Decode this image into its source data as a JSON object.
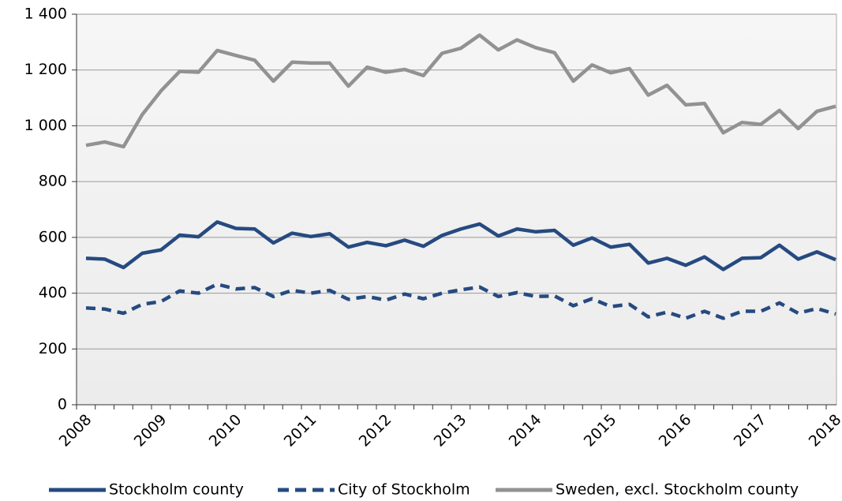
{
  "chart_data": {
    "type": "line",
    "categories": [
      "2008",
      null,
      null,
      null,
      "2009",
      null,
      null,
      null,
      "2010",
      null,
      null,
      null,
      "2011",
      null,
      null,
      null,
      "2012",
      null,
      null,
      null,
      "2013",
      null,
      null,
      null,
      "2014",
      null,
      null,
      null,
      "2015",
      null,
      null,
      null,
      "2016",
      null,
      null,
      null,
      "2017",
      null,
      null,
      null,
      "2018"
    ],
    "ylim": [
      0,
      1400
    ],
    "yticks": [
      0,
      200,
      400,
      600,
      800,
      {
        "value": 1000,
        "label": "1 000"
      },
      {
        "value": 1200,
        "label": "1 200"
      },
      {
        "value": 1400,
        "label": "1 400"
      }
    ],
    "grid": true,
    "legend": "bottom",
    "series": [
      {
        "name": "Stockholm county",
        "color": "#264a80",
        "style": "solid",
        "values": [
          525,
          522,
          492,
          543,
          555,
          608,
          602,
          655,
          632,
          630,
          580,
          615,
          603,
          613,
          565,
          582,
          570,
          590,
          568,
          607,
          630,
          648,
          605,
          630,
          620,
          625,
          572,
          598,
          565,
          575,
          508,
          525,
          500,
          530,
          485,
          525,
          527,
          572,
          522,
          548,
          520
        ]
      },
      {
        "name": "City of Stockholm",
        "color": "#264a80",
        "style": "dashed",
        "values": [
          347,
          343,
          328,
          360,
          370,
          408,
          400,
          432,
          415,
          420,
          388,
          410,
          400,
          410,
          378,
          388,
          375,
          397,
          380,
          400,
          412,
          422,
          388,
          402,
          388,
          390,
          355,
          380,
          352,
          360,
          315,
          332,
          310,
          335,
          310,
          335,
          335,
          365,
          328,
          345,
          325
        ]
      },
      {
        "name": "Sweden, excl. Stockholm county",
        "color": "#929292",
        "style": "solid",
        "values": [
          930,
          942,
          925,
          1040,
          1125,
          1195,
          1192,
          1270,
          1252,
          1235,
          1160,
          1228,
          1225,
          1225,
          1142,
          1210,
          1192,
          1202,
          1180,
          1260,
          1278,
          1325,
          1272,
          1308,
          1280,
          1262,
          1160,
          1218,
          1190,
          1205,
          1110,
          1145,
          1075,
          1080,
          975,
          1012,
          1005,
          1055,
          990,
          1052,
          1070
        ]
      }
    ]
  }
}
